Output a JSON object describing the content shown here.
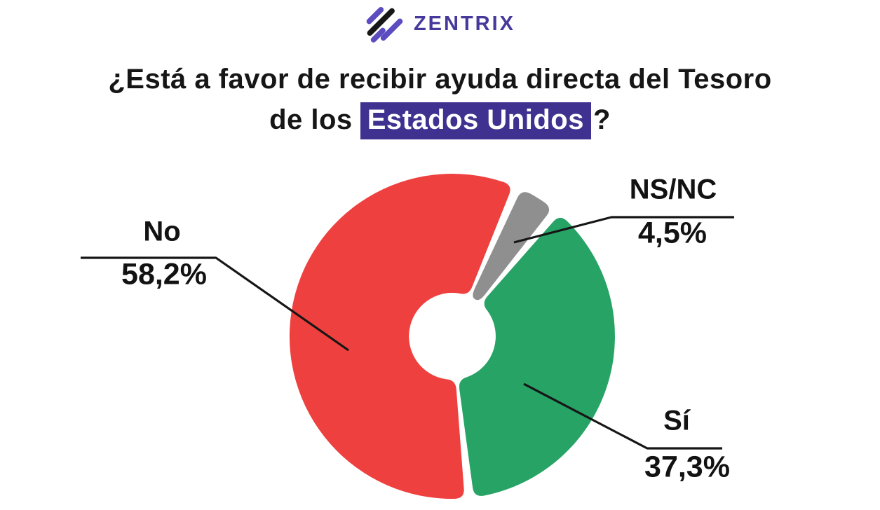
{
  "logo": {
    "text": "ZENTRIX"
  },
  "title": {
    "line1": "¿Está a favor de recibir ayuda directa del Tesoro",
    "line2_prefix": "de los",
    "line2_highlight": "Estados Unidos",
    "line2_suffix": "?"
  },
  "chart_data": {
    "type": "pie",
    "subtype": "donut",
    "title": "¿Está a favor de recibir ayuda directa del Tesoro de los Estados Unidos?",
    "unit": "%",
    "decimal_style": "comma",
    "legend_position": "callout-labels",
    "donut_hole_ratio": 0.27,
    "slices": [
      {
        "id": "no",
        "label": "No",
        "value": 58.2,
        "value_label": "58,2%",
        "color": "#ee403e"
      },
      {
        "id": "si",
        "label": "Sí",
        "value": 37.3,
        "value_label": "37,3%",
        "color": "#27a365"
      },
      {
        "id": "nsnc",
        "label": "NS/NC",
        "value": 4.5,
        "value_label": "4,5%",
        "color": "#8f8f8f"
      }
    ]
  },
  "colors": {
    "highlight_background": "#3f3190",
    "highlight_text": "#ffffff",
    "logo_purple": "#45399b",
    "logo_black": "#171717",
    "leader_line": "#161616",
    "title_text": "#161616"
  }
}
